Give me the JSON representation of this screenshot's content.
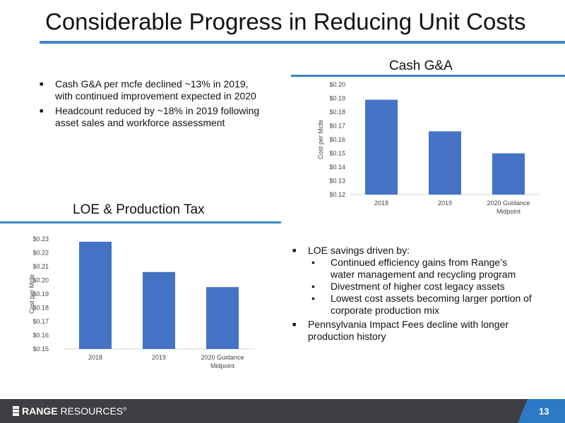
{
  "slide": {
    "title": "Considerable Progress in Reducing Unit Costs",
    "page_number": "13"
  },
  "top_bullets": [
    {
      "line1": "Cash G&A per mcfe declined ~13% in 2019,",
      "line2": "with continued improvement expected in 2020"
    },
    {
      "line1": "Headcount reduced by ~18% in 2019 following",
      "line2": "asset sales and workforce assessment"
    }
  ],
  "bottom_bullets": {
    "main1": "LOE savings driven by:",
    "subs": [
      {
        "line1": "Continued efficiency gains from Range’s",
        "line2": "water management and recycling program"
      },
      {
        "line1": "Divestment of higher cost legacy assets",
        "line2": ""
      },
      {
        "line1": "Lowest cost assets becoming larger portion of",
        "line2": "corporate production mix"
      }
    ],
    "main2": {
      "line1": "Pennsylvania Impact Fees decline with longer",
      "line2": "production history"
    }
  },
  "footer": {
    "logo_bold": "RANGE",
    "logo_light": " RESOURCES",
    "logo_reg": "®"
  },
  "chart_data": [
    {
      "id": "cash-ga",
      "type": "bar",
      "title": "Cash G&A",
      "ylabel": "Cost per Mcfe",
      "xlabel": "",
      "ylim": [
        0.12,
        0.2
      ],
      "yticks": [
        "$0.20",
        "$0.19",
        "$0.18",
        "$0.17",
        "$0.16",
        "$0.15",
        "$0.14",
        "$0.13",
        "$0.12"
      ],
      "categories": [
        [
          "2018"
        ],
        [
          "2019"
        ],
        [
          "2020 Guidance",
          "Midpoint"
        ]
      ],
      "values": [
        0.189,
        0.166,
        0.15
      ],
      "bar_color": "#4472c4",
      "grid": false
    },
    {
      "id": "loe-tax",
      "type": "bar",
      "title": "LOE & Production Tax",
      "ylabel": "Cost per Mcfe",
      "xlabel": "",
      "ylim": [
        0.15,
        0.23
      ],
      "yticks": [
        "$0.23",
        "$0.22",
        "$0.21",
        "$0.20",
        "$0.19",
        "$0.18",
        "$0.17",
        "$0.16",
        "$0.15"
      ],
      "categories": [
        [
          "2018"
        ],
        [
          "2019"
        ],
        [
          "2020 Guidance",
          "Midpoint"
        ]
      ],
      "values": [
        0.228,
        0.206,
        0.195
      ],
      "bar_color": "#4472c4",
      "grid": false
    }
  ]
}
